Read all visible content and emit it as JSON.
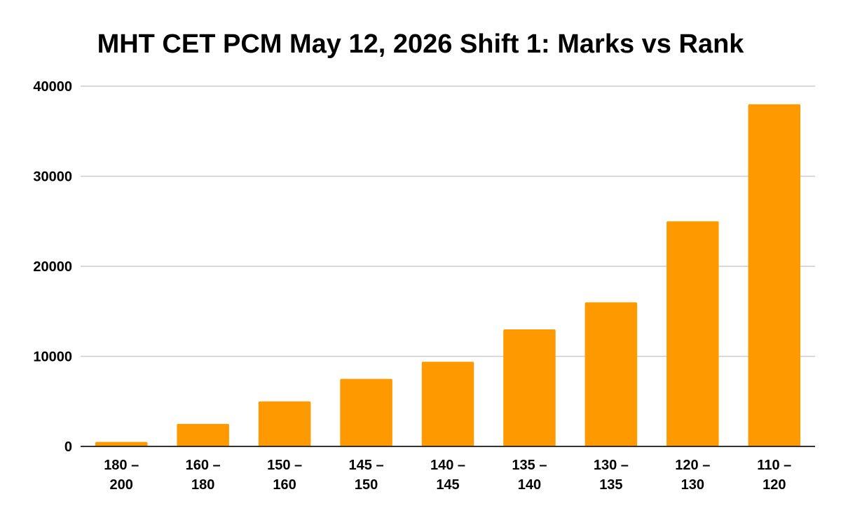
{
  "chart_data": {
    "type": "bar",
    "title": "MHT CET PCM May 12, 2026 Shift 1: Marks vs Rank",
    "xlabel": "",
    "ylabel": "",
    "categories": [
      [
        "180 –",
        "200"
      ],
      [
        "160 –",
        "180"
      ],
      [
        "150 –",
        "160"
      ],
      [
        "145 –",
        "150"
      ],
      [
        "140 –",
        "145"
      ],
      [
        "135 –",
        "140"
      ],
      [
        "130 –",
        "135"
      ],
      [
        "120 –",
        "130"
      ],
      [
        "110 –",
        "120"
      ]
    ],
    "values": [
      500,
      2500,
      5000,
      7500,
      9400,
      13000,
      16000,
      25000,
      38000
    ],
    "ylim": [
      0,
      40000
    ],
    "yticks": [
      "0",
      "10000",
      "20000",
      "30000",
      "40000"
    ],
    "ytick_values": [
      0,
      10000,
      20000,
      30000,
      40000
    ],
    "grid": true,
    "legend": "none",
    "colors": {
      "bar": "#FF9900",
      "grid": "#CCCCCC",
      "axis": "#333333",
      "text": "#000000"
    }
  }
}
